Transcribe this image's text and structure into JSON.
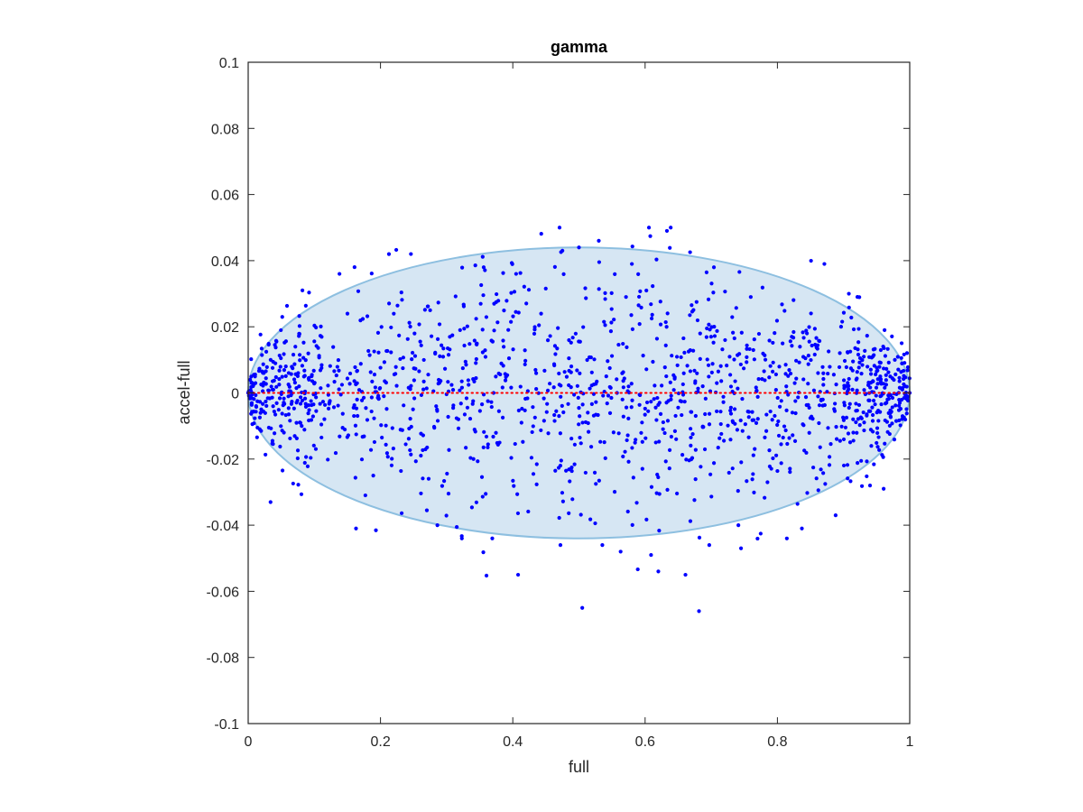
{
  "chart_data": {
    "type": "scatter",
    "title": "gamma",
    "xlabel": "full",
    "ylabel": "accel-full",
    "xlim": [
      0,
      1
    ],
    "ylim": [
      -0.1,
      0.1
    ],
    "xticks": [
      0,
      0.2,
      0.4,
      0.6,
      0.8,
      1
    ],
    "xtick_labels": [
      "0",
      "0.2",
      "0.4",
      "0.6",
      "0.8",
      "1"
    ],
    "yticks": [
      -0.1,
      -0.08,
      -0.06,
      -0.04,
      -0.02,
      0,
      0.02,
      0.04,
      0.06,
      0.08,
      0.1
    ],
    "ytick_labels": [
      "-0.1",
      "-0.08",
      "-0.06",
      "-0.04",
      "-0.02",
      "0",
      "0.02",
      "0.04",
      "0.06",
      "0.08",
      "0.1"
    ],
    "grid": false,
    "ellipse": {
      "cx": 0.5,
      "cy": 0,
      "rx": 0.5,
      "ry": 0.044,
      "fill": "#d6e6f3",
      "stroke": "#8dbfe0"
    },
    "reference_line": {
      "y": 0,
      "color": "#ff0000",
      "style": "dotted"
    },
    "point_color": "#0000ff",
    "point_count": 1500,
    "points": [
      [
        0.633,
        0.049
      ],
      [
        0.53,
        0.046
      ],
      [
        0.5,
        0.044
      ],
      [
        0.871,
        0.039
      ],
      [
        0.246,
        0.042
      ],
      [
        0.138,
        0.036
      ],
      [
        0.082,
        0.031
      ],
      [
        0.908,
        0.03
      ],
      [
        0.704,
        0.038
      ],
      [
        0.58,
        0.039
      ],
      [
        0.405,
        0.036
      ],
      [
        0.475,
        0.043
      ],
      [
        0.356,
        0.038
      ],
      [
        0.505,
        -0.065
      ],
      [
        0.408,
        -0.055
      ],
      [
        0.661,
        -0.055
      ],
      [
        0.62,
        -0.054
      ],
      [
        0.609,
        -0.049
      ],
      [
        0.563,
        -0.048
      ],
      [
        0.472,
        -0.046
      ],
      [
        0.745,
        -0.047
      ],
      [
        0.697,
        -0.046
      ],
      [
        0.163,
        -0.041
      ],
      [
        0.323,
        -0.044
      ],
      [
        0.369,
        -0.044
      ],
      [
        0.837,
        -0.041
      ],
      [
        0.888,
        -0.037
      ],
      [
        0.94,
        -0.028
      ],
      [
        0.286,
        -0.04
      ],
      [
        0.741,
        -0.04
      ],
      [
        1.0,
        0.0
      ],
      [
        0.0,
        0.0
      ],
      [
        0.005,
        0.003
      ],
      [
        0.012,
        -0.004
      ],
      [
        0.993,
        0.002
      ],
      [
        0.985,
        -0.003
      ]
    ]
  }
}
